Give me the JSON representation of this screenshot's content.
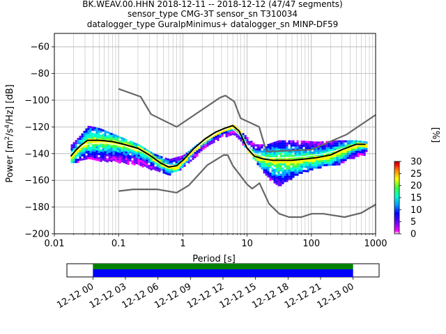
{
  "chart_data": [
    {
      "type": "heatmap",
      "title_lines": [
        "BK.WEAV.00.HHN   2018-12-11 -- 2018-12-12  (47/47 segments)",
        "sensor_type CMG-3T sensor_sn T310034",
        "datalogger_type GuralpMinimus+ datalogger_sn MINP-DF59"
      ],
      "xlabel": "Period [s]",
      "ylabel": "Power [m^2/s^4/Hz] [dB]",
      "xscale": "log",
      "xlim": [
        0.01,
        1000
      ],
      "ylim": [
        -200,
        -50
      ],
      "x_ticks": [
        {
          "value": 0.01,
          "label": "0.01"
        },
        {
          "value": 0.1,
          "label": "0.1"
        },
        {
          "value": 1,
          "label": "1"
        },
        {
          "value": 10,
          "label": "10"
        },
        {
          "value": 100,
          "label": "100"
        },
        {
          "value": 1000,
          "label": "1000"
        }
      ],
      "y_ticks": [
        {
          "value": -60,
          "label": "−60"
        },
        {
          "value": -80,
          "label": "−80"
        },
        {
          "value": -100,
          "label": "−100"
        },
        {
          "value": -120,
          "label": "−120"
        },
        {
          "value": -140,
          "label": "−140"
        },
        {
          "value": -160,
          "label": "−160"
        },
        {
          "value": -180,
          "label": "−180"
        },
        {
          "value": -200,
          "label": "−200"
        }
      ],
      "grid": true,
      "colorbar": {
        "label": "[%]",
        "range": [
          0,
          30
        ],
        "ticks": [
          {
            "value": 0,
            "label": "0"
          },
          {
            "value": 5,
            "label": "5"
          },
          {
            "value": 10,
            "label": "10"
          },
          {
            "value": 15,
            "label": "15"
          },
          {
            "value": 20,
            "label": "20"
          },
          {
            "value": 25,
            "label": "25"
          },
          {
            "value": 30,
            "label": "30"
          }
        ],
        "colors": [
          "#ffffff",
          "#ff00ff",
          "#6a00ff",
          "#0000ff",
          "#00a0ff",
          "#00ffd0",
          "#40ff40",
          "#ffff00",
          "#ff8000",
          "#ff0000",
          "#a00000"
        ]
      },
      "density_band": [
        {
          "period": 0.018,
          "low": -147,
          "high": -133
        },
        {
          "period": 0.025,
          "low": -145,
          "high": -126
        },
        {
          "period": 0.033,
          "low": -143,
          "high": -119
        },
        {
          "period": 0.05,
          "low": -145,
          "high": -121
        },
        {
          "period": 0.1,
          "low": -146,
          "high": -127
        },
        {
          "period": 0.2,
          "low": -148,
          "high": -133
        },
        {
          "period": 0.35,
          "low": -152,
          "high": -140
        },
        {
          "period": 0.6,
          "low": -155,
          "high": -144
        },
        {
          "period": 1.0,
          "low": -150,
          "high": -141
        },
        {
          "period": 1.5,
          "low": -142,
          "high": -134
        },
        {
          "period": 2.5,
          "low": -133,
          "high": -126
        },
        {
          "period": 4,
          "low": -127,
          "high": -121
        },
        {
          "period": 6,
          "low": -125,
          "high": -118
        },
        {
          "period": 9,
          "low": -134,
          "high": -126
        },
        {
          "period": 13,
          "low": -145,
          "high": -133
        },
        {
          "period": 20,
          "low": -157,
          "high": -133
        },
        {
          "period": 30,
          "low": -164,
          "high": -130
        },
        {
          "period": 60,
          "low": -155,
          "high": -130
        },
        {
          "period": 120,
          "low": -150,
          "high": -131
        },
        {
          "period": 250,
          "low": -148,
          "high": -130
        },
        {
          "period": 500,
          "low": -142,
          "high": -130
        },
        {
          "period": 700,
          "low": -140,
          "high": -131
        }
      ],
      "series": [
        {
          "name": "mode",
          "color": "#000000",
          "x": [
            0.018,
            0.022,
            0.027,
            0.033,
            0.05,
            0.08,
            0.12,
            0.2,
            0.3,
            0.45,
            0.6,
            0.8,
            1.0,
            1.5,
            2.2,
            3.2,
            4.5,
            6,
            7.5,
            10,
            13,
            18,
            25,
            35,
            50,
            80,
            120,
            200,
            300,
            500,
            700
          ],
          "y": [
            -142,
            -137,
            -133,
            -130,
            -130,
            -131,
            -133,
            -136,
            -141,
            -147,
            -150,
            -149,
            -145,
            -136,
            -129,
            -124,
            -121,
            -119,
            -123,
            -136,
            -142,
            -144,
            -145,
            -145,
            -145,
            -144,
            -143,
            -141,
            -137,
            -133,
            -133
          ]
        },
        {
          "name": "mean",
          "color": "#ffffff",
          "x": [
            0.018,
            0.03,
            0.06,
            0.12,
            0.25,
            0.5,
            0.8,
            1.2,
            2,
            3.5,
            5.5,
            8,
            12,
            20,
            40,
            80,
            160,
            320,
            700
          ],
          "y": [
            -140,
            -133,
            -132,
            -134,
            -139,
            -148,
            -149,
            -141,
            -132,
            -124,
            -120,
            -127,
            -139,
            -143,
            -143,
            -142,
            -140,
            -136,
            -132
          ]
        },
        {
          "name": "noise_model_high",
          "color": "#666666",
          "x": [
            0.1,
            0.22,
            0.32,
            0.8,
            3.8,
            4.6,
            6.3,
            7.9,
            15.4,
            20,
            100,
            354.8,
            1000
          ],
          "y": [
            -91.5,
            -97.4,
            -110.5,
            -120,
            -98,
            -96.5,
            -101,
            -113.5,
            -120,
            -138.5,
            -137,
            -125.6,
            -111
          ]
        },
        {
          "name": "noise_model_low",
          "color": "#666666",
          "x": [
            0.1,
            0.17,
            0.4,
            0.8,
            1.24,
            2.4,
            4.3,
            5,
            6,
            10,
            12,
            15.6,
            21.9,
            31.6,
            45,
            70,
            101,
            154,
            328,
            600,
            1000
          ],
          "y": [
            -168,
            -166.7,
            -166.7,
            -169.2,
            -163.7,
            -148.6,
            -141.1,
            -141.1,
            -149,
            -163,
            -166.2,
            -162.1,
            -177.5,
            -185,
            -187.5,
            -187.5,
            -185,
            -185,
            -187.5,
            -184.4,
            -178
          ]
        }
      ]
    },
    {
      "type": "timeline",
      "tick_labels": [
        "12-12 00",
        "12-12 03",
        "12-12 06",
        "12-12 09",
        "12-12 12",
        "12-12 15",
        "12-12 18",
        "12-12 21",
        "12-13 00"
      ],
      "bars": [
        {
          "name": "data_available",
          "color": "#008000",
          "start": 0,
          "end": 24
        },
        {
          "name": "segments_used",
          "color": "#0000ff",
          "start": 0,
          "end": 24
        }
      ],
      "xlim": [
        -2.4,
        26.4
      ]
    }
  ]
}
